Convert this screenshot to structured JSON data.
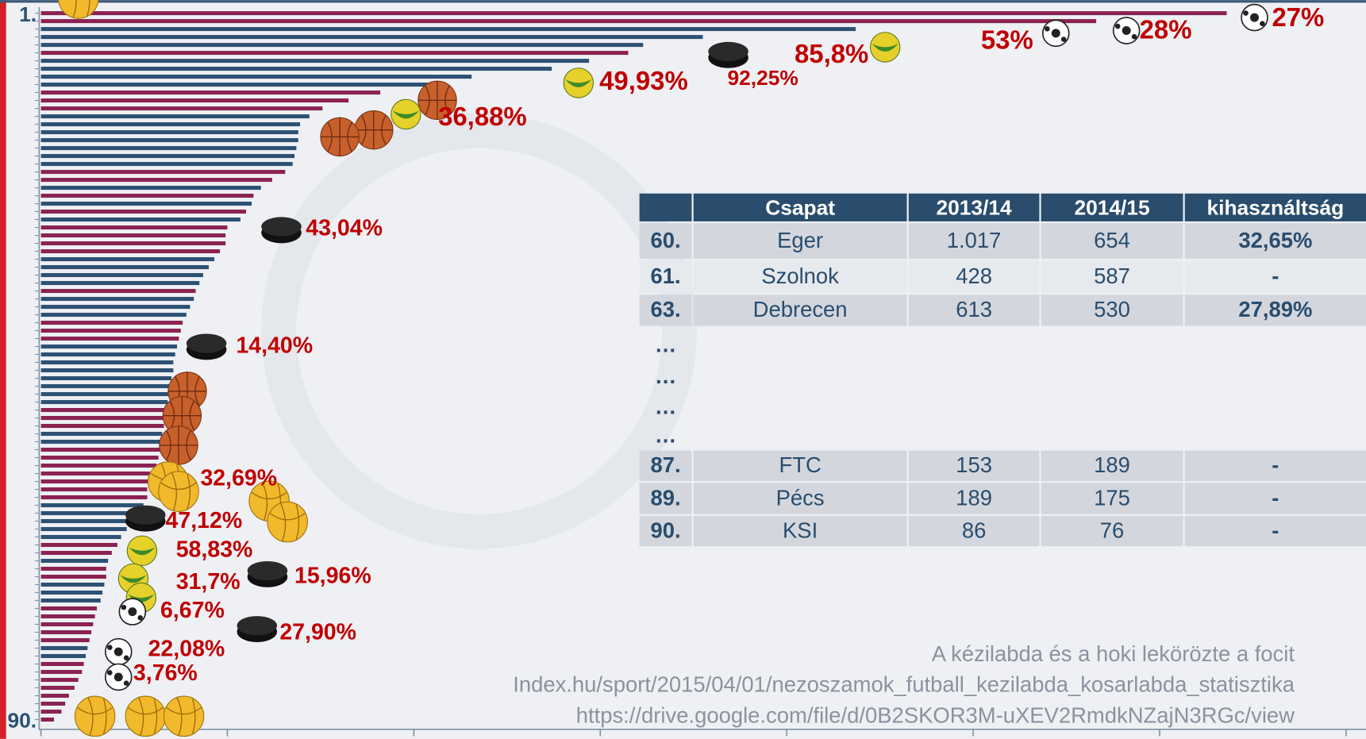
{
  "chart_data": {
    "type": "bar",
    "categories": [
      "1.",
      null,
      null,
      null,
      null,
      null,
      null,
      null,
      null,
      null,
      null,
      null,
      null,
      null,
      null,
      null,
      null,
      null,
      null,
      null,
      null,
      null,
      null,
      null,
      null,
      null,
      null,
      null,
      null,
      null,
      null,
      null,
      null,
      null,
      null,
      null,
      null,
      null,
      null,
      null,
      null,
      null,
      null,
      null,
      null,
      null,
      null,
      null,
      null,
      null,
      null,
      null,
      null,
      null,
      null,
      null,
      null,
      null,
      null,
      null,
      null,
      null,
      null,
      null,
      null,
      null,
      null,
      null,
      null,
      null,
      null,
      null,
      null,
      null,
      null,
      null,
      null,
      null,
      null,
      null,
      null,
      null,
      null,
      null,
      null,
      null,
      null,
      null,
      null,
      "90."
    ],
    "values": [
      6.36,
      5.66,
      4.37,
      3.55,
      3.23,
      3.15,
      2.94,
      2.74,
      2.31,
      2.11,
      1.82,
      1.65,
      1.51,
      1.44,
      1.39,
      1.38,
      1.38,
      1.37,
      1.36,
      1.35,
      1.31,
      1.24,
      1.18,
      1.14,
      1.13,
      1.1,
      1.07,
      1.0,
      0.99,
      0.99,
      0.96,
      0.93,
      0.9,
      0.87,
      0.85,
      0.83,
      0.82,
      0.8,
      0.78,
      0.76,
      0.75,
      0.74,
      0.73,
      0.72,
      0.71,
      0.71,
      0.7,
      0.69,
      0.69,
      0.68,
      0.68,
      0.67,
      0.66,
      0.65,
      0.64,
      0.64,
      0.63,
      0.62,
      0.6,
      0.58,
      0.57,
      0.57,
      0.55,
      0.53,
      0.48,
      0.46,
      0.43,
      0.41,
      0.38,
      0.36,
      0.35,
      0.35,
      0.34,
      0.33,
      0.32,
      0.3,
      0.29,
      0.28,
      0.27,
      0.26,
      0.25,
      0.24,
      0.23,
      0.22,
      0.2,
      0.18,
      0.15,
      0.13,
      0.11,
      0.07
    ],
    "colors": [
      "#8b2252",
      "#8b2252",
      "#2e5173",
      "#2e5173",
      "#2e5173",
      "#8b2252",
      "#2e5173",
      "#2e5173",
      "#2e5173",
      "#2e5173",
      "#8b2252",
      "#8b2252",
      "#8b2252",
      "#2e5173",
      "#2e5173",
      "#2e5173",
      "#2e5173",
      "#2e5173",
      "#2e5173",
      "#2e5173",
      "#8b2252",
      "#8b2252",
      "#2e5173",
      "#8b2252",
      "#2e5173",
      "#8b2252",
      "#2e5173",
      "#8b2252",
      "#8b2252",
      "#8b2252",
      "#8b2252",
      "#2e5173",
      "#2e5173",
      "#2e5173",
      "#2e5173",
      "#8b2252",
      "#2e5173",
      "#2e5173",
      "#2e5173",
      "#8b2252",
      "#8b2252",
      "#8b2252",
      "#2e5173",
      "#2e5173",
      "#2e5173",
      "#2e5173",
      "#2e5173",
      "#2e5173",
      "#2e5173",
      "#2e5173",
      "#8b2252",
      "#8b2252",
      "#8b2252",
      "#2e5173",
      "#2e5173",
      "#8b2252",
      "#8b2252",
      "#8b2252",
      "#8b2252",
      "#8b2252",
      "#8b2252",
      "#8b2252",
      "#2e5173",
      "#2e5173",
      "#2e5173",
      "#2e5173",
      "#2e5173",
      "#8b2252",
      "#8b2252",
      "#2e5173",
      "#8b2252",
      "#8b2252",
      "#2e5173",
      "#2e5173",
      "#2e5173",
      "#8b2252",
      "#8b2252",
      "#8b2252",
      "#8b2252",
      "#8b2252",
      "#2e5173",
      "#2e5173",
      "#8b2252",
      "#8b2252",
      "#8b2252",
      "#8b2252",
      "#8b2252",
      "#8b2252",
      "#8b2252",
      "#8b2252"
    ],
    "xlim": [
      0,
      7.107
    ],
    "xticks": [
      0,
      1,
      2,
      3,
      4,
      5,
      6,
      7
    ],
    "annotations": [
      "27%",
      "28%",
      "53%",
      "85,8%",
      "92,25%",
      "49,93%",
      "36,88%",
      "43,04%",
      "14,40%",
      "32,69%",
      "47,12%",
      "58,83%",
      "31,7%",
      "15,96%",
      "6,67%",
      "27,90%",
      "22,08%",
      "3,76%"
    ]
  },
  "table": {
    "header": [
      "Csapat",
      "2013/14",
      "2014/15",
      "kihasználtság"
    ],
    "rows": [
      [
        "60.",
        "Eger",
        "1.017",
        "654",
        "32,65%"
      ],
      [
        "61.",
        "Szolnok",
        "428",
        "587",
        "-"
      ],
      [
        "63.",
        "Debrecen",
        "613",
        "530",
        "27,89%"
      ],
      [
        "…"
      ],
      [
        "…"
      ],
      [
        "…"
      ],
      [
        "…"
      ],
      [
        "87.",
        "FTC",
        "153",
        "189",
        "-"
      ],
      [
        "89.",
        "Pécs",
        "189",
        "175",
        "-"
      ],
      [
        "90.",
        "KSI",
        "86",
        "76",
        "-"
      ]
    ]
  },
  "footer": [
    "A kézilabda és a hoki lekörözte a focit",
    "Index.hu/sport/2015/04/01/nezoszamok_futball_kezilabda_kosarlabda_statisztika",
    "https://drive.google.com/file/d/0B2SKOR3M-uXEV2RmdkNZajN3RGc/view"
  ]
}
